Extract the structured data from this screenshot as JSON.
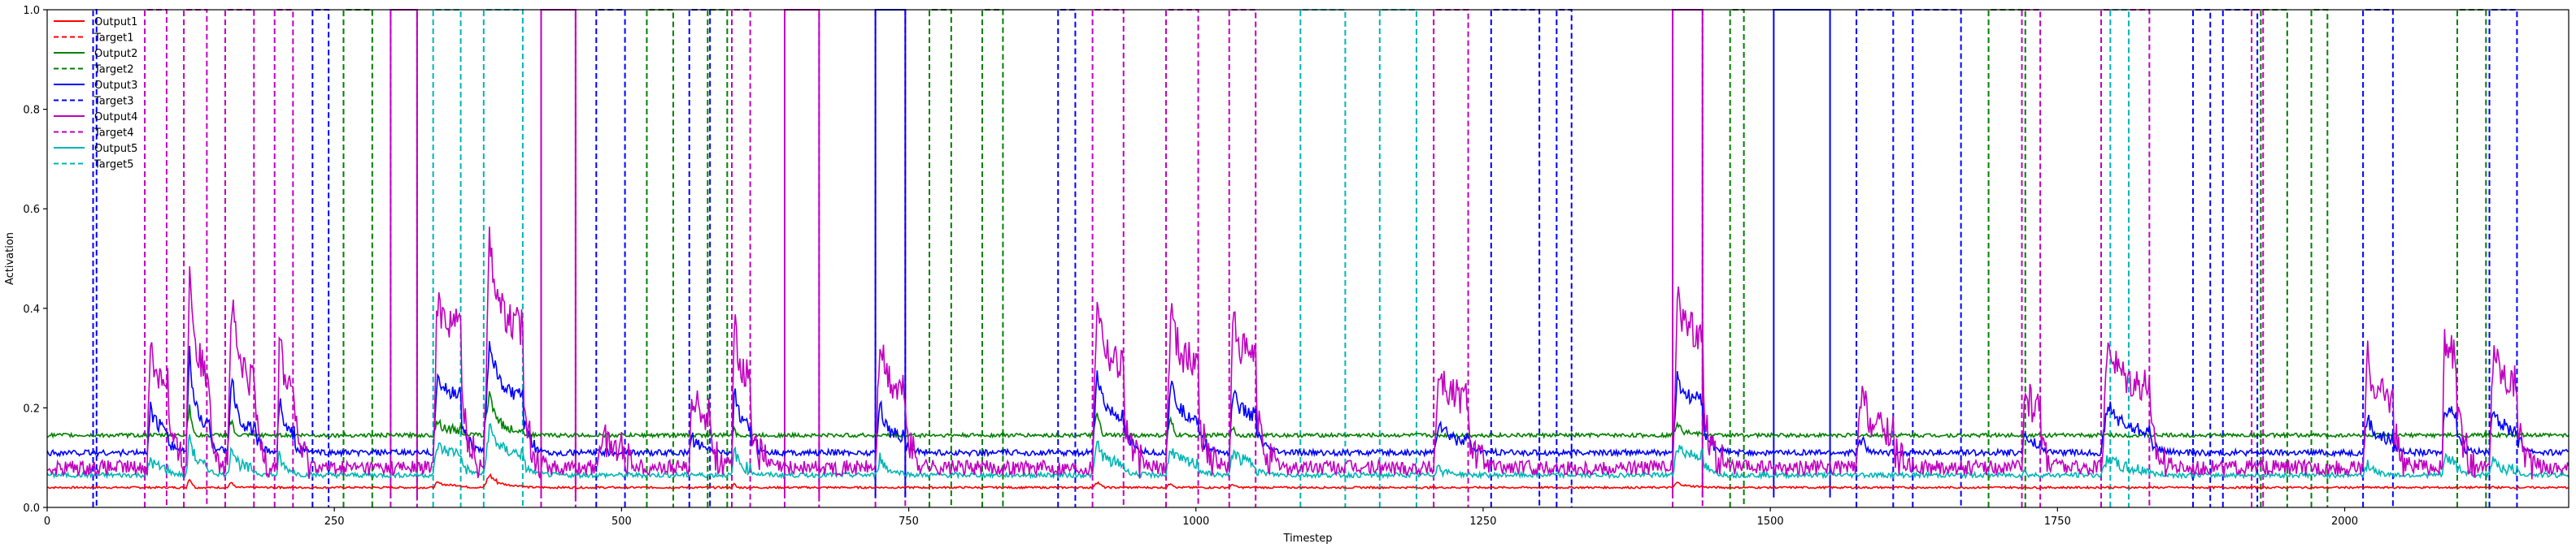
{
  "chart_data": {
    "type": "line",
    "title": "",
    "xlabel": "Timestep",
    "ylabel": "Activation",
    "xlim": [
      0,
      2195
    ],
    "ylim": [
      0,
      1.0
    ],
    "grid": false,
    "legend_position": "top-left",
    "x_ticks": [
      0,
      250,
      500,
      750,
      1000,
      1250,
      1500,
      1750,
      2000
    ],
    "y_ticks": [
      0.0,
      0.2,
      0.4,
      0.6,
      0.8,
      1.0
    ],
    "x_tick_labels": [
      "0",
      "250",
      "500",
      "750",
      "1000",
      "1250",
      "1500",
      "1750",
      "2000"
    ],
    "y_tick_labels": [
      "0.0",
      "0.2",
      "0.4",
      "0.6",
      "0.8",
      "1.0"
    ],
    "series": [
      {
        "name": "Output1",
        "color": "#ff0000",
        "style": "solid",
        "baseline": 0.04,
        "pulse_level": 0.045
      },
      {
        "name": "Target1",
        "color": "#ff0000",
        "style": "dashed",
        "pulses": []
      },
      {
        "name": "Output2",
        "color": "#008000",
        "style": "solid",
        "baseline": 0.145,
        "pulse_level": 0.11
      },
      {
        "name": "Target2",
        "color": "#008000",
        "style": "dashed",
        "pulses": [
          [
            258,
            283
          ],
          [
            522,
            545
          ],
          [
            575,
            592
          ],
          [
            768,
            787
          ],
          [
            814,
            832
          ],
          [
            1465,
            1477
          ],
          [
            1690,
            1722
          ],
          [
            1927,
            1950
          ],
          [
            1971,
            1985
          ],
          [
            2098,
            2123
          ]
        ]
      },
      {
        "name": "Output3",
        "color": "#0000ff",
        "style": "solid",
        "baseline": 0.11,
        "pulse_level": 0.2
      },
      {
        "name": "Target3",
        "color": "#0000ff",
        "style": "dashed",
        "pulses": [
          [
            40,
            43
          ],
          [
            231,
            245
          ],
          [
            478,
            503
          ],
          [
            559,
            577
          ],
          [
            880,
            895
          ],
          [
            1257,
            1299
          ],
          [
            1314,
            1327
          ],
          [
            1575,
            1607
          ],
          [
            1624,
            1666
          ],
          [
            1868,
            1883
          ],
          [
            1894,
            1924
          ],
          [
            2016,
            2042
          ],
          [
            2126,
            2150
          ]
        ]
      },
      {
        "name": "Output4",
        "color": "#c000c0",
        "style": "solid",
        "baseline": 0.08,
        "pulse_level": 0.27
      },
      {
        "name": "Target4",
        "color": "#c000c0",
        "style": "dashed",
        "pulses": [
          [
            85,
            104
          ],
          [
            119,
            139
          ],
          [
            155,
            180
          ],
          [
            198,
            214
          ],
          [
            299,
            322
          ],
          [
            430,
            460
          ],
          [
            596,
            612
          ],
          [
            642,
            672
          ],
          [
            721,
            747
          ],
          [
            910,
            937
          ],
          [
            974,
            1002
          ],
          [
            1029,
            1052
          ],
          [
            1207,
            1237
          ],
          [
            1415,
            1441
          ],
          [
            1719,
            1735
          ],
          [
            1788,
            1830
          ],
          [
            1919,
            1929
          ]
        ]
      },
      {
        "name": "Output5",
        "color": "#00b5b5",
        "style": "solid",
        "baseline": 0.065,
        "pulse_level": 0.1
      },
      {
        "name": "Target5",
        "color": "#00b5b5",
        "style": "dashed",
        "pulses": [
          [
            336,
            360
          ],
          [
            380,
            414
          ],
          [
            1091,
            1130
          ],
          [
            1160,
            1192
          ],
          [
            1796,
            1812
          ]
        ]
      }
    ],
    "output_peaks": [
      {
        "x": 87,
        "w": 18,
        "series": "Output4",
        "peak": 0.33,
        "hold": 0.26
      },
      {
        "x": 121,
        "w": 20,
        "series": "Output4",
        "peak": 0.5,
        "hold": 0.27
      },
      {
        "x": 157,
        "w": 24,
        "series": "Output4",
        "peak": 0.43,
        "hold": 0.25
      },
      {
        "x": 200,
        "w": 15,
        "series": "Output4",
        "peak": 0.36,
        "hold": 0.24
      },
      {
        "x": 336,
        "w": 24,
        "series": "Output4",
        "peak": 0.42,
        "hold": 0.37
      },
      {
        "x": 380,
        "w": 34,
        "series": "Output4",
        "peak": 0.55,
        "hold": 0.36
      },
      {
        "x": 478,
        "w": 25,
        "series": "Output4",
        "peak": 0.15,
        "hold": 0.12
      },
      {
        "x": 559,
        "w": 18,
        "series": "Output4",
        "peak": 0.23,
        "hold": 0.19
      },
      {
        "x": 596,
        "w": 16,
        "series": "Output4",
        "peak": 0.4,
        "hold": 0.26
      },
      {
        "x": 721,
        "w": 26,
        "series": "Output4",
        "peak": 0.34,
        "hold": 0.23
      },
      {
        "x": 910,
        "w": 27,
        "series": "Output4",
        "peak": 0.44,
        "hold": 0.29
      },
      {
        "x": 974,
        "w": 28,
        "series": "Output4",
        "peak": 0.41,
        "hold": 0.29
      },
      {
        "x": 1029,
        "w": 23,
        "series": "Output4",
        "peak": 0.39,
        "hold": 0.3
      },
      {
        "x": 1207,
        "w": 30,
        "series": "Output4",
        "peak": 0.28,
        "hold": 0.22
      },
      {
        "x": 1415,
        "w": 26,
        "series": "Output4",
        "peak": 0.42,
        "hold": 0.35
      },
      {
        "x": 1575,
        "w": 32,
        "series": "Output4",
        "peak": 0.23,
        "hold": 0.15
      },
      {
        "x": 1719,
        "w": 16,
        "series": "Output4",
        "peak": 0.25,
        "hold": 0.2
      },
      {
        "x": 1788,
        "w": 42,
        "series": "Output4",
        "peak": 0.34,
        "hold": 0.25
      },
      {
        "x": 2016,
        "w": 26,
        "series": "Output4",
        "peak": 0.3,
        "hold": 0.22
      },
      {
        "x": 2085,
        "w": 12,
        "series": "Output4",
        "peak": 0.33,
        "hold": 0.31
      },
      {
        "x": 2126,
        "w": 24,
        "series": "Output4",
        "peak": 0.34,
        "hold": 0.25
      }
    ],
    "solid_pulses": [
      {
        "x": 299,
        "w": 23,
        "series": "Output4"
      },
      {
        "x": 430,
        "w": 30,
        "series": "Output4"
      },
      {
        "x": 642,
        "w": 30,
        "series": "Output4"
      },
      {
        "x": 721,
        "w": 26,
        "series": "Output3"
      },
      {
        "x": 1415,
        "w": 26,
        "series": "Output4"
      },
      {
        "x": 1503,
        "w": 49,
        "series": "Output3"
      }
    ]
  }
}
